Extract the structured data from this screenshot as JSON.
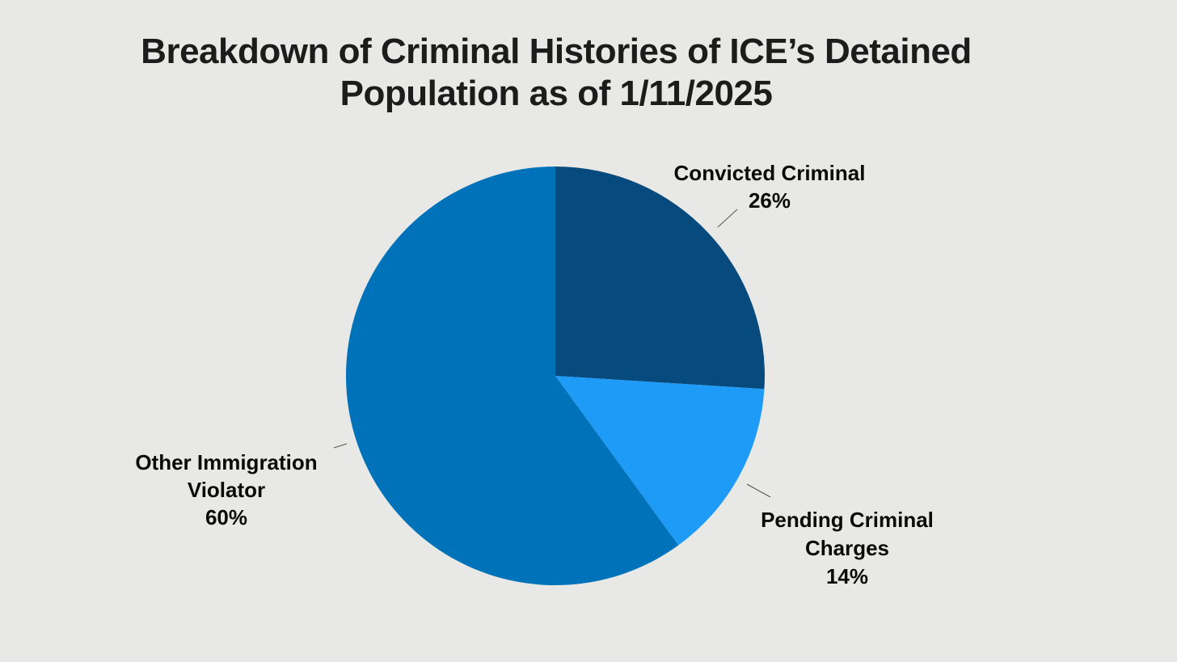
{
  "chart_data": {
    "type": "pie",
    "title": [
      "Breakdown of Criminal Histories of ICE’s Detained",
      "Population as of 1/11/2025"
    ],
    "slices": [
      {
        "label_lines": [
          "Convicted Criminal"
        ],
        "value": 26,
        "value_label": "26%",
        "color": "#074a7e"
      },
      {
        "label_lines": [
          "Pending Criminal",
          "Charges"
        ],
        "value": 14,
        "value_label": "14%",
        "color": "#1e9bf6"
      },
      {
        "label_lines": [
          "Other Immigration",
          "Violator"
        ],
        "value": 60,
        "value_label": "60%",
        "color": "#0072b9"
      }
    ],
    "start_angle_deg": 0,
    "direction": "clockwise"
  }
}
